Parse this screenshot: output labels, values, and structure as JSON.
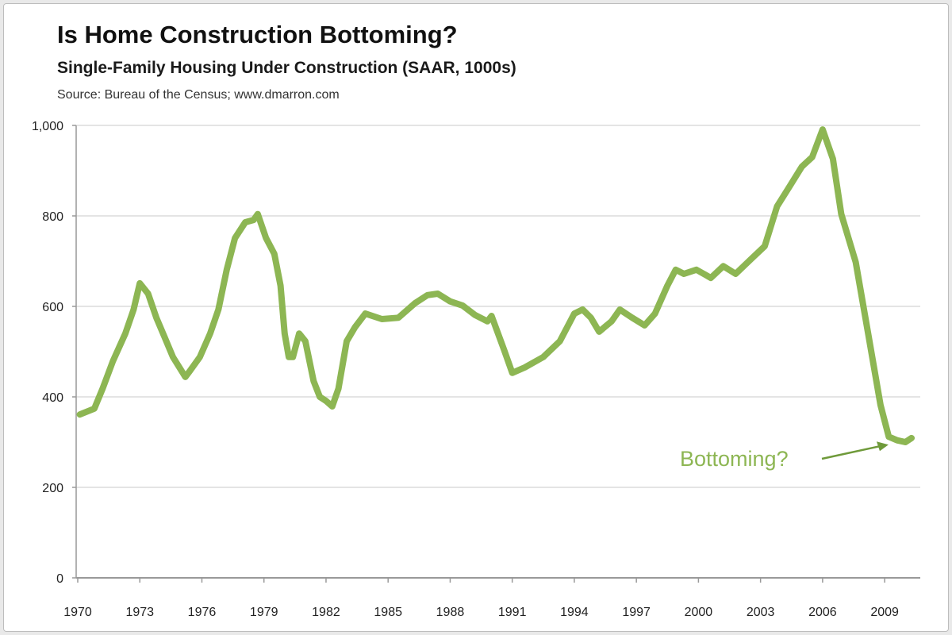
{
  "chart_data": {
    "type": "line",
    "title": "Is Home Construction Bottoming?",
    "subtitle": "Single-Family Housing Under Construction (SAAR, 1000s)",
    "source": "Source: Bureau of the Census; www.dmarron.com",
    "xlabel": "",
    "ylabel": "",
    "xlim": [
      1970,
      2010.5
    ],
    "ylim": [
      0,
      1000
    ],
    "grid": true,
    "line_color": "#8db653",
    "y_ticks": [
      0,
      200,
      400,
      600,
      800,
      1000
    ],
    "y_tick_labels": [
      "0",
      "200",
      "400",
      "600",
      "800",
      "1,000"
    ],
    "x_ticks": [
      1970,
      1973,
      1976,
      1979,
      1982,
      1985,
      1988,
      1991,
      1994,
      1997,
      2000,
      2003,
      2006,
      2009
    ],
    "x_tick_labels": [
      "1970",
      "1973",
      "1976",
      "1979",
      "1982",
      "1985",
      "1988",
      "1991",
      "1994",
      "1997",
      "2000",
      "2003",
      "2006",
      "2009"
    ],
    "series": [
      {
        "x": [
          1970.1,
          1970.8,
          1971.2,
          1971.7,
          1972.3,
          1972.7,
          1973.0,
          1973.4,
          1973.8,
          1974.2,
          1974.6,
          1975.2,
          1975.4,
          1975.9,
          1976.4,
          1976.8,
          1977.2,
          1977.6,
          1978.1,
          1978.5,
          1978.7,
          1979.1,
          1979.5,
          1979.8,
          1980.0,
          1980.2,
          1980.4,
          1980.7,
          1981.0,
          1981.4,
          1981.7,
          1982.0,
          1982.3,
          1982.6,
          1983.0,
          1983.4,
          1983.9,
          1984.7,
          1985.5,
          1986.3,
          1986.9,
          1987.4,
          1988.0,
          1988.6,
          1989.2,
          1989.8,
          1990.0,
          1990.6,
          1991.0,
          1991.6,
          1992.5,
          1993.3,
          1994.0,
          1994.4,
          1994.8,
          1995.2,
          1995.8,
          1996.2,
          1996.8,
          1997.4,
          1997.9,
          1998.5,
          1998.9,
          1999.3,
          1999.9,
          2000.6,
          2001.2,
          2001.8,
          2002.6,
          2003.2,
          2003.8,
          2004.4,
          2005.0,
          2005.5,
          2006.0,
          2006.5,
          2006.9,
          2007.6,
          2008.2,
          2008.8,
          2009.2,
          2009.6,
          2010.0,
          2010.3
        ],
        "y": [
          361,
          374,
          418,
          479,
          540,
          593,
          651,
          628,
          575,
          532,
          488,
          444,
          456,
          488,
          540,
          593,
          681,
          751,
          786,
          791,
          804,
          751,
          716,
          646,
          540,
          488,
          488,
          540,
          523,
          435,
          400,
          391,
          379,
          418,
          523,
          554,
          584,
          572,
          575,
          607,
          625,
          628,
          611,
          602,
          581,
          567,
          579,
          505,
          453,
          465,
          488,
          523,
          584,
          593,
          575,
          544,
          567,
          593,
          575,
          558,
          584,
          646,
          681,
          672,
          681,
          663,
          689,
          672,
          707,
          733,
          821,
          865,
          909,
          930,
          991,
          926,
          804,
          698,
          540,
          382,
          312,
          304,
          300,
          309
        ]
      }
    ],
    "annotations": [
      {
        "text": "Bottoming?",
        "points_to": [
          2009.3,
          310
        ]
      }
    ]
  }
}
